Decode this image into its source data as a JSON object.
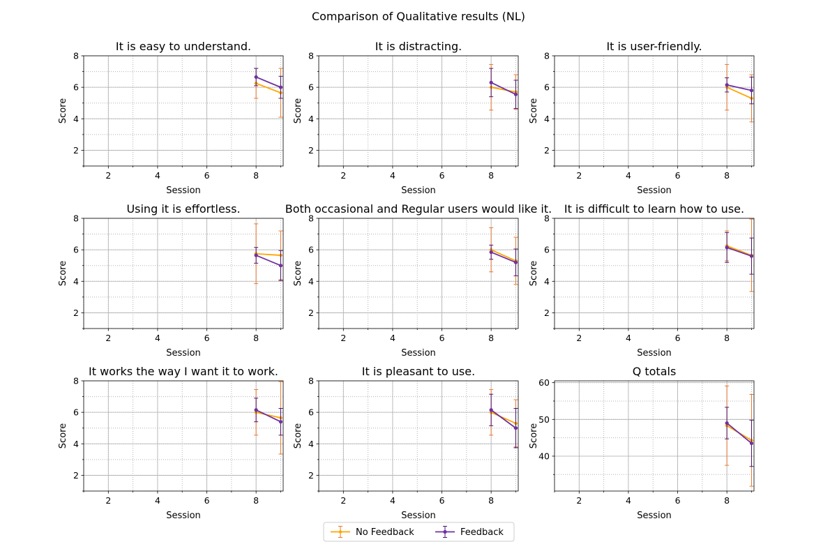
{
  "figure": {
    "title": "Comparison of Qualitative results (NL)"
  },
  "legend": {
    "placement": "bottom-center",
    "entries": [
      {
        "label": "No Feedback",
        "color": "#ffa500"
      },
      {
        "label": "Feedback",
        "color": "#7030a0"
      }
    ]
  },
  "colors": {
    "no_feedback_line": "#ffa500",
    "no_feedback_error": "#e8772e",
    "feedback_line": "#7030a0",
    "feedback_error": "#4b1470",
    "grid_major": "#b0b0b0",
    "grid_minor": "#b0b0b0"
  },
  "chart_data": [
    {
      "type": "line",
      "title": "It is easy to understand.",
      "xlabel": "Session",
      "ylabel": "Score",
      "xlim": [
        1,
        9.1
      ],
      "ylim": [
        1,
        8
      ],
      "xticks": [
        2,
        4,
        6,
        8
      ],
      "yticks": [
        2,
        4,
        6,
        8
      ],
      "grid": "major solid, minor dotted",
      "x": [
        8,
        9
      ],
      "series": [
        {
          "name": "No Feedback",
          "values": [
            6.25,
            5.65
          ],
          "err": [
            0.95,
            1.55
          ]
        },
        {
          "name": "Feedback",
          "values": [
            6.65,
            6.0
          ],
          "err": [
            0.55,
            0.7
          ]
        }
      ]
    },
    {
      "type": "line",
      "title": "It is distracting.",
      "xlabel": "Session",
      "ylabel": "Score",
      "xlim": [
        1,
        9.1
      ],
      "ylim": [
        1,
        8
      ],
      "xticks": [
        2,
        4,
        6,
        8
      ],
      "yticks": [
        2,
        4,
        6,
        8
      ],
      "grid": "major solid, minor dotted",
      "x": [
        8,
        9
      ],
      "series": [
        {
          "name": "No Feedback",
          "values": [
            6.0,
            5.7
          ],
          "err": [
            1.45,
            1.1
          ]
        },
        {
          "name": "Feedback",
          "values": [
            6.3,
            5.55
          ],
          "err": [
            0.9,
            0.9
          ]
        }
      ]
    },
    {
      "type": "line",
      "title": "It is user-friendly.",
      "xlabel": "Session",
      "ylabel": "Score",
      "xlim": [
        1,
        9.1
      ],
      "ylim": [
        1,
        8
      ],
      "xticks": [
        2,
        4,
        6,
        8
      ],
      "yticks": [
        2,
        4,
        6,
        8
      ],
      "grid": "major solid, minor dotted",
      "x": [
        8,
        9
      ],
      "series": [
        {
          "name": "No Feedback",
          "values": [
            6.0,
            5.3
          ],
          "err": [
            1.45,
            1.5
          ]
        },
        {
          "name": "Feedback",
          "values": [
            6.15,
            5.8
          ],
          "err": [
            0.45,
            0.85
          ]
        }
      ]
    },
    {
      "type": "line",
      "title": "Using it is effortless.",
      "xlabel": "Session",
      "ylabel": "Score",
      "xlim": [
        1,
        9.1
      ],
      "ylim": [
        1,
        8
      ],
      "xticks": [
        2,
        4,
        6,
        8
      ],
      "yticks": [
        2,
        4,
        6,
        8
      ],
      "grid": "major solid, minor dotted",
      "x": [
        8,
        9
      ],
      "series": [
        {
          "name": "No Feedback",
          "values": [
            5.75,
            5.65
          ],
          "err": [
            1.9,
            1.55
          ]
        },
        {
          "name": "Feedback",
          "values": [
            5.65,
            5.0
          ],
          "err": [
            0.5,
            0.95
          ]
        }
      ]
    },
    {
      "type": "line",
      "title": "Both occasional and Regular users would like it.",
      "xlabel": "Session",
      "ylabel": "Score",
      "xlim": [
        1,
        9.1
      ],
      "ylim": [
        1,
        8
      ],
      "xticks": [
        2,
        4,
        6,
        8
      ],
      "yticks": [
        2,
        4,
        6,
        8
      ],
      "grid": "major solid, minor dotted",
      "x": [
        8,
        9
      ],
      "series": [
        {
          "name": "No Feedback",
          "values": [
            6.0,
            5.3
          ],
          "err": [
            1.4,
            1.5
          ]
        },
        {
          "name": "Feedback",
          "values": [
            5.85,
            5.2
          ],
          "err": [
            0.45,
            0.85
          ]
        }
      ]
    },
    {
      "type": "line",
      "title": "It is difficult to learn how to use.",
      "xlabel": "Session",
      "ylabel": "Score",
      "xlim": [
        1,
        9.1
      ],
      "ylim": [
        1,
        8
      ],
      "xticks": [
        2,
        4,
        6,
        8
      ],
      "yticks": [
        2,
        4,
        6,
        8
      ],
      "grid": "major solid, minor dotted",
      "x": [
        8,
        9
      ],
      "series": [
        {
          "name": "No Feedback",
          "values": [
            6.25,
            5.65
          ],
          "err": [
            0.95,
            2.3
          ]
        },
        {
          "name": "Feedback",
          "values": [
            6.15,
            5.6
          ],
          "err": [
            0.95,
            1.15
          ]
        }
      ]
    },
    {
      "type": "line",
      "title": "It works the way I want it to work.",
      "xlabel": "Session",
      "ylabel": "Score",
      "xlim": [
        1,
        9.1
      ],
      "ylim": [
        1,
        8
      ],
      "xticks": [
        2,
        4,
        6,
        8
      ],
      "yticks": [
        2,
        4,
        6,
        8
      ],
      "grid": "major solid, minor dotted",
      "x": [
        8,
        9
      ],
      "series": [
        {
          "name": "No Feedback",
          "values": [
            6.0,
            5.65
          ],
          "err": [
            1.45,
            2.3
          ]
        },
        {
          "name": "Feedback",
          "values": [
            6.15,
            5.4
          ],
          "err": [
            0.75,
            0.85
          ]
        }
      ]
    },
    {
      "type": "line",
      "title": "It is pleasant to use.",
      "xlabel": "Session",
      "ylabel": "Score",
      "xlim": [
        1,
        9.1
      ],
      "ylim": [
        1,
        8
      ],
      "xticks": [
        2,
        4,
        6,
        8
      ],
      "yticks": [
        2,
        4,
        6,
        8
      ],
      "grid": "major solid, minor dotted",
      "x": [
        8,
        9
      ],
      "series": [
        {
          "name": "No Feedback",
          "values": [
            6.0,
            5.3
          ],
          "err": [
            1.45,
            1.5
          ]
        },
        {
          "name": "Feedback",
          "values": [
            6.15,
            5.0
          ],
          "err": [
            1.0,
            1.25
          ]
        }
      ]
    },
    {
      "type": "line",
      "title": "Q totals",
      "xlabel": "Session",
      "ylabel": "Score",
      "xlim": [
        1,
        9.1
      ],
      "ylim": [
        30.5,
        60.5
      ],
      "xticks": [
        2,
        4,
        6,
        8
      ],
      "yticks": [
        40,
        50,
        60
      ],
      "grid": "major solid, minor dotted",
      "x": [
        8,
        9
      ],
      "series": [
        {
          "name": "No Feedback",
          "values": [
            48.3,
            44.3
          ],
          "err": [
            10.8,
            12.5
          ]
        },
        {
          "name": "Feedback",
          "values": [
            49.0,
            43.5
          ],
          "err": [
            4.3,
            6.3
          ]
        }
      ]
    }
  ]
}
